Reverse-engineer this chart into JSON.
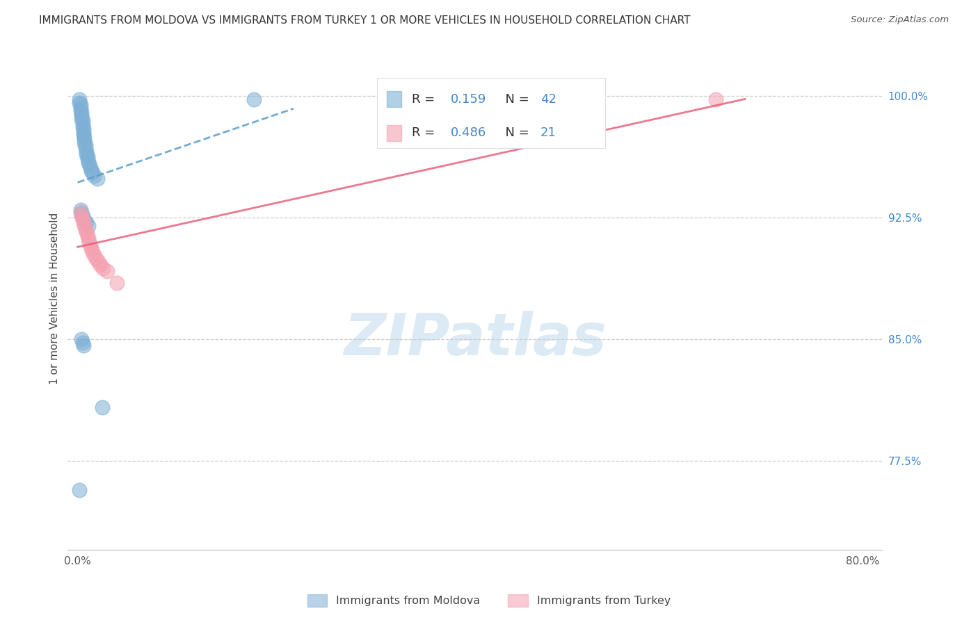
{
  "title": "IMMIGRANTS FROM MOLDOVA VS IMMIGRANTS FROM TURKEY 1 OR MORE VEHICLES IN HOUSEHOLD CORRELATION CHART",
  "source": "Source: ZipAtlas.com",
  "ylabel": "1 or more Vehicles in Household",
  "xlim": [
    -0.01,
    0.82
  ],
  "ylim": [
    0.72,
    1.03
  ],
  "xtick_positions": [
    0.0,
    0.1,
    0.2,
    0.3,
    0.4,
    0.5,
    0.6,
    0.7,
    0.8
  ],
  "xticklabels": [
    "0.0%",
    "",
    "",
    "",
    "",
    "",
    "",
    "",
    "80.0%"
  ],
  "yticks_right": [
    0.775,
    0.85,
    0.925,
    1.0
  ],
  "ytick_labels_right": [
    "77.5%",
    "85.0%",
    "92.5%",
    "100.0%"
  ],
  "moldova_color": "#7EB0D5",
  "turkey_color": "#F4A0B0",
  "moldova_line_color": "#5B9DC9",
  "turkey_line_color": "#E8607A",
  "watermark": "ZIPatlas",
  "moldova_R": 0.159,
  "moldova_N": 42,
  "turkey_R": 0.486,
  "turkey_N": 21,
  "moldova_x": [
    0.002,
    0.002,
    0.003,
    0.003,
    0.003,
    0.004,
    0.004,
    0.004,
    0.005,
    0.005,
    0.005,
    0.006,
    0.006,
    0.006,
    0.007,
    0.007,
    0.007,
    0.008,
    0.008,
    0.009,
    0.009,
    0.01,
    0.01,
    0.011,
    0.012,
    0.013,
    0.014,
    0.015,
    0.017,
    0.02,
    0.003,
    0.004,
    0.005,
    0.007,
    0.009,
    0.011,
    0.004,
    0.005,
    0.006,
    0.025,
    0.18,
    0.002
  ],
  "moldova_y": [
    0.998,
    0.996,
    0.995,
    0.993,
    0.991,
    0.99,
    0.988,
    0.986,
    0.985,
    0.983,
    0.981,
    0.98,
    0.978,
    0.976,
    0.975,
    0.973,
    0.971,
    0.97,
    0.968,
    0.966,
    0.964,
    0.963,
    0.961,
    0.959,
    0.958,
    0.956,
    0.954,
    0.953,
    0.951,
    0.949,
    0.93,
    0.928,
    0.926,
    0.924,
    0.922,
    0.92,
    0.85,
    0.848,
    0.846,
    0.808,
    0.998,
    0.757
  ],
  "turkey_x": [
    0.003,
    0.004,
    0.005,
    0.006,
    0.007,
    0.008,
    0.009,
    0.01,
    0.011,
    0.012,
    0.013,
    0.014,
    0.015,
    0.017,
    0.019,
    0.021,
    0.023,
    0.026,
    0.03,
    0.04,
    0.65
  ],
  "turkey_y": [
    0.928,
    0.926,
    0.924,
    0.922,
    0.92,
    0.918,
    0.916,
    0.914,
    0.912,
    0.91,
    0.908,
    0.906,
    0.904,
    0.902,
    0.9,
    0.898,
    0.896,
    0.894,
    0.892,
    0.885,
    0.998
  ]
}
